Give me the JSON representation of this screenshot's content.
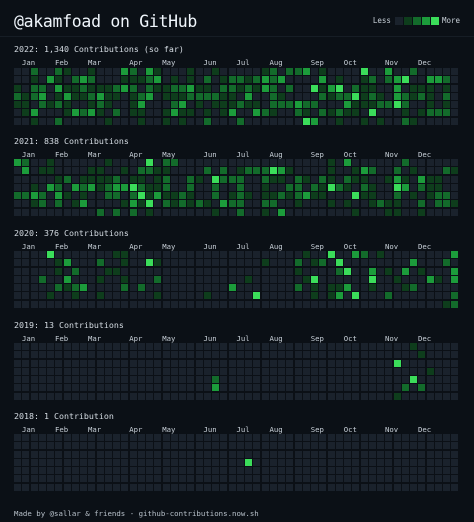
{
  "header": {
    "title": "@akamfoad on GitHub",
    "legend_less": "Less",
    "legend_more": "More",
    "legend_colors": [
      "#1a222c",
      "#0e3d1c",
      "#136b2b",
      "#1c9c3b",
      "#3bdd5a"
    ]
  },
  "colors": {
    "background": "#0b1016",
    "empty_cell": "#1a222c",
    "level1": "#0e3d1c",
    "level2": "#136b2b",
    "level3": "#1c9c3b",
    "level4": "#3bdd5a"
  },
  "years": [
    {
      "title": "2022: 1,340 Contributions (so far)",
      "months": [
        "Jan",
        "Feb",
        "Mar",
        "Apr",
        "May",
        "Jun",
        "Jul",
        "Aug",
        "Sep",
        "Oct",
        "Nov",
        "Dec"
      ],
      "month_weeks": [
        0,
        4,
        8,
        13,
        17,
        22,
        26,
        30,
        35,
        39,
        44,
        48
      ],
      "start_weekday": 6,
      "active_until_week": 52,
      "seed": 11,
      "density": 0.7,
      "highlights": [
        [
          39,
          2
        ],
        [
          41,
          3
        ],
        [
          42,
          0
        ],
        [
          43,
          5
        ],
        [
          46,
          4
        ],
        [
          47,
          1
        ],
        [
          36,
          2
        ],
        [
          35,
          6
        ]
      ]
    },
    {
      "title": "2021: 838 Contributions",
      "months": [
        "Jan",
        "Feb",
        "Mar",
        "Apr",
        "May",
        "Jun",
        "Jul",
        "Aug",
        "Sep",
        "Oct",
        "Nov",
        "Dec"
      ],
      "month_weeks": [
        0,
        4,
        8,
        13,
        17,
        22,
        26,
        30,
        35,
        39,
        44,
        48
      ],
      "start_weekday": 5,
      "active_until_week": 53,
      "seed": 23,
      "density": 0.55,
      "highlights": [
        [
          16,
          0
        ],
        [
          14,
          3
        ],
        [
          15,
          4
        ],
        [
          16,
          5
        ],
        [
          24,
          2
        ],
        [
          31,
          1
        ],
        [
          38,
          3
        ],
        [
          41,
          4
        ],
        [
          46,
          3
        ]
      ]
    },
    {
      "title": "2020: 376 Contributions",
      "months": [
        "Jan",
        "Feb",
        "Mar",
        "Apr",
        "May",
        "Jun",
        "Jul",
        "Aug",
        "Sep",
        "Oct",
        "Nov",
        "Dec"
      ],
      "month_weeks": [
        0,
        4,
        8,
        13,
        17,
        22,
        26,
        30,
        35,
        39,
        44,
        48
      ],
      "start_weekday": 3,
      "active_until_week": 53,
      "seed": 37,
      "density": 0.33,
      "highlights": [
        [
          4,
          0
        ],
        [
          16,
          1
        ],
        [
          29,
          5
        ],
        [
          38,
          0
        ],
        [
          39,
          1
        ],
        [
          40,
          2
        ],
        [
          41,
          5
        ],
        [
          43,
          3
        ],
        [
          36,
          3
        ]
      ]
    },
    {
      "title": "2019: 13 Contributions",
      "months": [
        "Jan",
        "Feb",
        "Mar",
        "Apr",
        "May",
        "Jun",
        "Jul",
        "Aug",
        "Sep",
        "Oct",
        "Nov",
        "Dec"
      ],
      "month_weeks": [
        0,
        4,
        8,
        13,
        17,
        22,
        26,
        30,
        35,
        39,
        44,
        48
      ],
      "start_weekday": 2,
      "active_until_week": 53,
      "seed": 51,
      "density": 0,
      "sparse": [
        [
          24,
          4,
          2
        ],
        [
          24,
          5,
          3
        ],
        [
          46,
          2,
          4
        ],
        [
          48,
          4,
          4
        ],
        [
          49,
          5,
          2
        ],
        [
          48,
          0,
          1
        ],
        [
          49,
          1,
          1
        ],
        [
          50,
          3,
          1
        ],
        [
          47,
          5,
          2
        ],
        [
          46,
          6,
          1
        ]
      ]
    },
    {
      "title": "2018: 1 Contribution",
      "months": [
        "Jan",
        "Feb",
        "Mar",
        "Apr",
        "May",
        "Jun",
        "Jul",
        "Aug",
        "Sep",
        "Oct",
        "Nov",
        "Dec"
      ],
      "month_weeks": [
        0,
        4,
        8,
        13,
        17,
        22,
        26,
        30,
        35,
        39,
        44,
        48
      ],
      "start_weekday": 1,
      "active_until_week": 53,
      "seed": 67,
      "density": 0,
      "sparse": [
        [
          28,
          3,
          4
        ]
      ]
    }
  ],
  "footer": "Made by @sallar & friends - github-contributions.now.sh"
}
